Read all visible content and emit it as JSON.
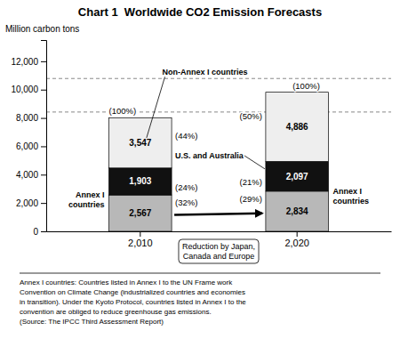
{
  "chart_data": {
    "type": "bar",
    "stacked": true,
    "title": "Chart 1  Worldwide CO2 Emission Forecasts",
    "ylabel": "Million carbon tons",
    "categories": [
      "2,010",
      "2,020"
    ],
    "series": [
      {
        "color": "#b8b8b8",
        "values": [
          2567,
          2834
        ],
        "value_labels": [
          "2,567",
          "2,834"
        ],
        "share_labels": [
          "(32%)",
          "(29%)"
        ]
      },
      {
        "color": "#111111",
        "values": [
          1903,
          2097
        ],
        "value_labels": [
          "1,903",
          "2,097"
        ],
        "share_labels": [
          "(24%)",
          "(21%)"
        ]
      },
      {
        "color": "#eeeeee",
        "values": [
          3547,
          4886
        ],
        "value_labels": [
          "3,547",
          "4,886"
        ],
        "share_labels": [
          "(44%)",
          "(50%)"
        ]
      }
    ],
    "data_labels": true,
    "total_labels": [
      "(100%)",
      "(100%)"
    ],
    "ylim": [
      0,
      13500
    ],
    "yticks": [
      0,
      {
        "value": 2000,
        "label": "2,000"
      },
      {
        "value": 4000,
        "label": "4,000"
      },
      {
        "value": 6000,
        "label": "6,000"
      },
      {
        "value": 8000,
        "label": "8,000"
      },
      {
        "value": 10000,
        "label": "10,000"
      },
      {
        "value": 12000,
        "label": "12,000"
      }
    ],
    "grid": false,
    "reference_lines": [
      10786,
      8420
    ],
    "annotations": {
      "annex_i": "Annex I\ncountries",
      "non_annex_i": "Non-Annex I countries",
      "us_australia": "U.S. and Australia",
      "reduction": "Reduction by Japan,\nCanada and Europe"
    },
    "footnote": "Annex I countries: Countries listed in Annex I to the UN Frame work\nConvention on Climate Change (industrialized countries and economies\nin transition). Under the Kyoto Protocol, countries listed in Annex I to the\nconvention are obliged to reduce greenhouse gas emissions.\n(Source: The IPCC Third Assessment Report)"
  }
}
